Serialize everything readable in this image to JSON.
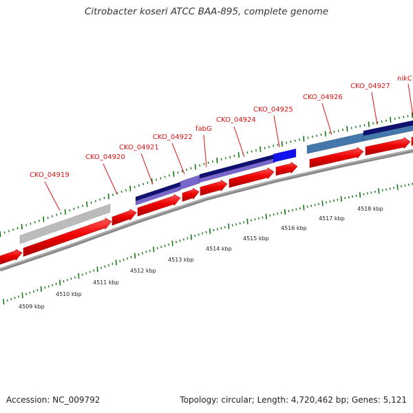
{
  "title": "Citrobacter koseri ATCC BAA-895, complete genome",
  "footer": {
    "accession": "Accession: NC_009792",
    "summary": "Topology: circular; Length: 4,720,462 bp; Genes: 5,121"
  },
  "colors": {
    "cds_forward": "#ee0000",
    "cds_dark": "#bb0000",
    "backbone": "#888888",
    "tick": "#117711",
    "label": "#dd1111",
    "gray_feature": "#bbbbbb",
    "navy_feature": "#101070",
    "lavender_feature": "#7766cc",
    "blue_feature": "#1111ee",
    "steel_feature": "#4477aa"
  },
  "gene_labels": [
    "CKO_04919",
    "CKO_04920",
    "CKO_04921",
    "CKO_04922",
    "fabG",
    "CKO_04924",
    "CKO_04925",
    "CKO_04926",
    "CKO_04927",
    "nikC"
  ],
  "ruler_labels": [
    "4509 kbp",
    "4510 kbp",
    "4511 kbp",
    "4512 kbp",
    "4513 kbp",
    "4514 kbp",
    "4515 kbp",
    "4516 kbp",
    "4517 kbp",
    "4518 kbp"
  ]
}
